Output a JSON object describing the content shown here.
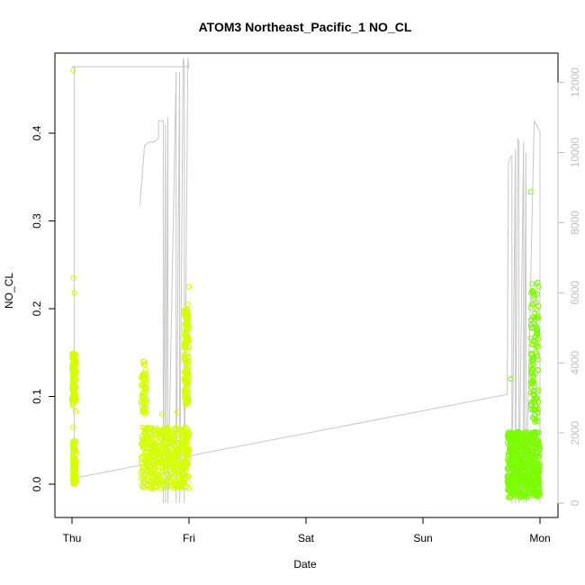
{
  "chart_data": {
    "type": "scatter",
    "title": "ATOM3 Northeast_Pacific_1 NO_CL",
    "xlabel": "Date",
    "ylabel": "NO_CL",
    "x_ticks": [
      "Thu",
      "Fri",
      "Sat",
      "Sun",
      "Mon"
    ],
    "xlim_days": [
      0,
      4
    ],
    "ylim": [
      0,
      0.4
    ],
    "y_ticks": [
      "0.0",
      "0.1",
      "0.2",
      "0.3",
      "0.4"
    ],
    "y2_ticks": [
      "0",
      "2000",
      "4000",
      "6000",
      "8000",
      "10000",
      "12000"
    ],
    "y2lim": [
      0,
      12000
    ],
    "grid": false,
    "legend": "none",
    "colors": {
      "points_early": "#d4ff00",
      "points_late": "#7cfc00",
      "altitude_line": "#c8c8c8",
      "secondary_axis": "#c0c0c0"
    },
    "series": [
      {
        "kind": "points",
        "description_clusters": [
          {
            "day_range": [
              0.0,
              0.04
            ],
            "value_range": [
              0.0,
              0.15
            ],
            "outliers": [
              0.472,
              0.235,
              0.218
            ]
          },
          {
            "day_range": [
              0.58,
              1.0
            ],
            "value_range": [
              -0.01,
              0.08
            ],
            "high_band": [
              0.09,
              0.22
            ]
          },
          {
            "day_range": [
              3.72,
              4.0
            ],
            "value_range": [
              -0.02,
              0.07
            ],
            "high_band": [
              0.08,
              0.23
            ],
            "outliers": [
              0.333
            ]
          }
        ]
      },
      {
        "kind": "line",
        "axis": "y2",
        "points": [
          [
            0.0,
            12400
          ],
          [
            0.01,
            12400
          ],
          [
            0.015,
            12400
          ],
          [
            0.04,
            12400
          ],
          [
            0.04,
            12400
          ],
          [
            1.0,
            12400
          ],
          [
            1.0,
            12600
          ],
          [
            0.99,
            12500
          ],
          [
            0.03,
            12400
          ]
        ]
      }
    ]
  }
}
